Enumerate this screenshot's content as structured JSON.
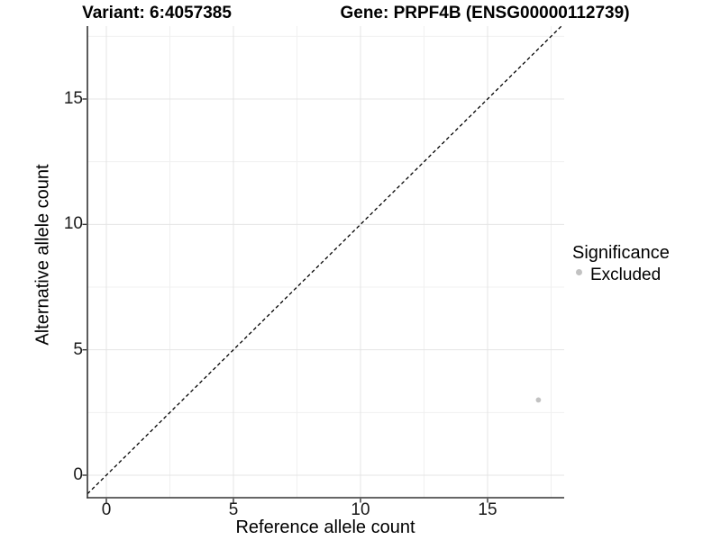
{
  "header": {
    "variant_title": "Variant: 6:4057385",
    "gene_title": "Gene: PRPF4B (ENSG00000112739)"
  },
  "chart_data": {
    "type": "scatter",
    "title": "Variant: 6:4057385   Gene: PRPF4B (ENSG00000112739)",
    "xlabel": "Reference allele count",
    "ylabel": "Alternative allele count",
    "xlim": [
      -0.75,
      18.0
    ],
    "ylim": [
      -0.9,
      17.9
    ],
    "x_major_ticks": [
      0,
      5,
      10,
      15
    ],
    "y_major_ticks": [
      0,
      5,
      10,
      15
    ],
    "x_minor_gridlines": [
      2.5,
      7.5,
      12.5,
      17.5
    ],
    "y_minor_gridlines": [
      2.5,
      7.5,
      12.5,
      17.5
    ],
    "grid": "major and minor gridlines, light gray on white",
    "series": [
      {
        "name": "Excluded",
        "color": "#C2C2C2",
        "points": [
          {
            "x": 17,
            "y": 3
          }
        ]
      }
    ],
    "reference_line": {
      "kind": "identity y = x",
      "style": "dashed",
      "color": "#000000"
    },
    "legend": {
      "title": "Significance",
      "position": "right",
      "items": [
        {
          "label": "Excluded",
          "color": "#C2C2C2",
          "marker": "circle"
        }
      ]
    },
    "colors": {
      "axis_line": "#333333",
      "tick_text": "#1A1A1A",
      "grid_major": "#E4E4E4",
      "grid_minor": "#F0F0F0",
      "background": "#FFFFFF",
      "point": "#C2C2C2"
    }
  }
}
